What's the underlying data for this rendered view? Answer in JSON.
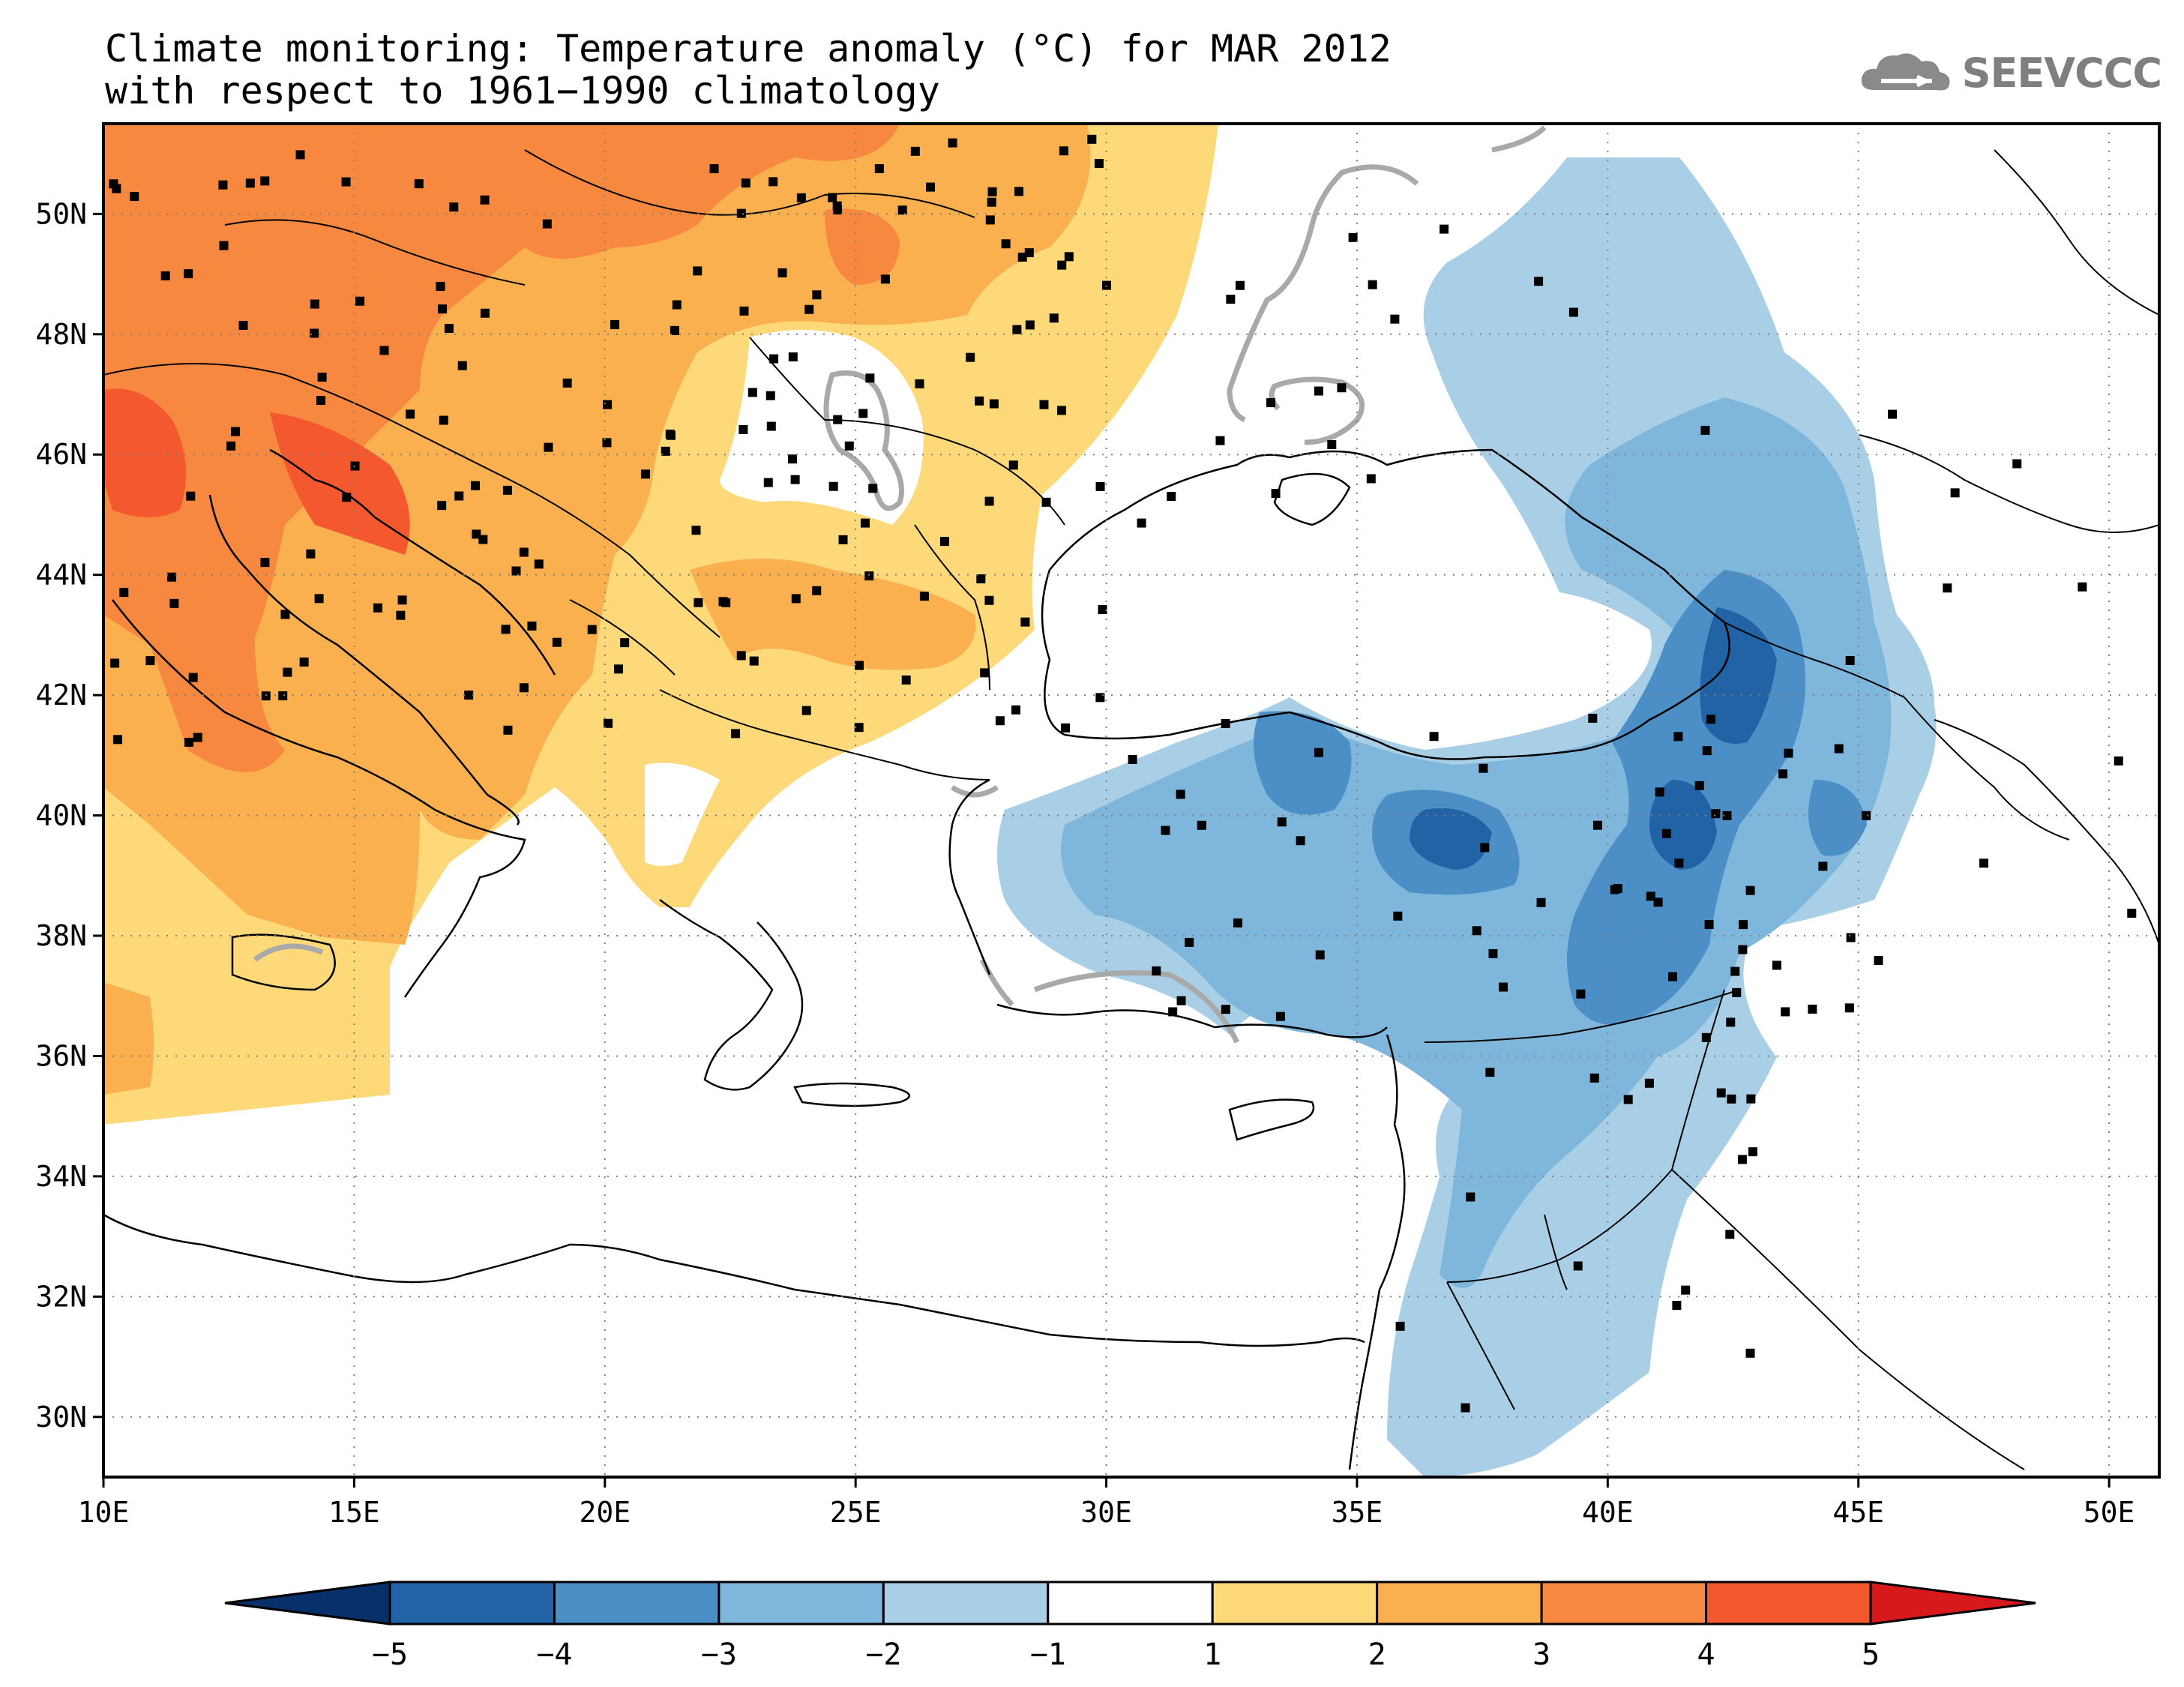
{
  "title": {
    "line1": "Climate monitoring: Temperature anomaly (°C) for MAR 2012",
    "line2": "with respect to 1961−1990 climatology"
  },
  "logo": {
    "text": "SEEVCCC"
  },
  "axes": {
    "lon_range": [
      10,
      51
    ],
    "lat_range": [
      29,
      51.5
    ],
    "x_ticks": [
      "10E",
      "15E",
      "20E",
      "25E",
      "30E",
      "35E",
      "40E",
      "45E",
      "50E"
    ],
    "y_ticks": [
      "30N",
      "32N",
      "34N",
      "36N",
      "38N",
      "40N",
      "42N",
      "44N",
      "46N",
      "48N",
      "50N"
    ],
    "grid": "dotted"
  },
  "colorbar": {
    "labels": [
      "−5",
      "−4",
      "−3",
      "−2",
      "−1",
      "1",
      "2",
      "3",
      "4",
      "5"
    ],
    "colors": [
      "#08306b",
      "#2163a5",
      "#4b8fc6",
      "#7fb6dc",
      "#a9cfe6",
      "#ffffff",
      "#fdd97a",
      "#fbb04f",
      "#f7883f",
      "#f3582f",
      "#d7191c"
    ],
    "extend": "both"
  },
  "colors": {
    "warm1": "#fdd97a",
    "warm2": "#fbb04f",
    "warm3": "#f7883f",
    "warm4": "#f3582f",
    "cold1": "#a9cfe6",
    "cold2": "#7fb6dc",
    "cold3": "#4b8fc6",
    "cold4": "#2163a5",
    "zero_contour": "#a9a9a9",
    "stations": "#000000"
  }
}
